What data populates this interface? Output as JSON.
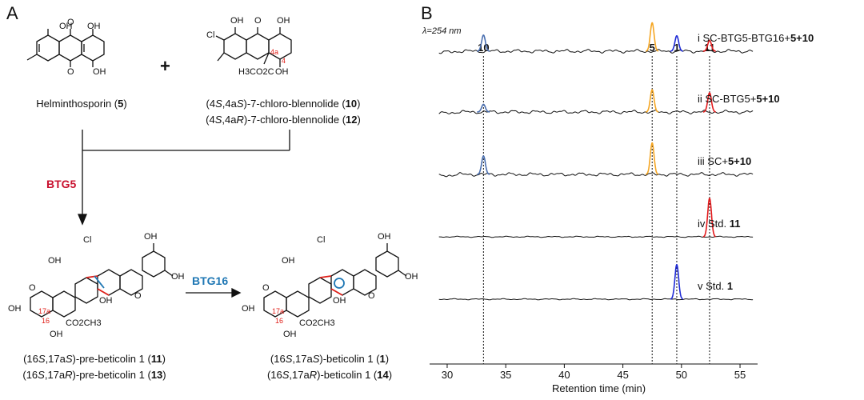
{
  "panel_a": {
    "letter": "A",
    "plus": "+",
    "helminthosporin": {
      "pre": "Helminthosporin (",
      "num": "5",
      "post": ")"
    },
    "chloro_10": {
      "p1": "(4",
      "i1": "S",
      "p2": ",4a",
      "i2": "S",
      "p3": ")-7-chloro-blennolide (",
      "num": "10",
      "p4": ")"
    },
    "chloro_12": {
      "p1": "(4",
      "i1": "S",
      "p2": ",4a",
      "i2": "R",
      "p3": ")-7-chloro-blennolide (",
      "num": "12",
      "p4": ")"
    },
    "enzyme1": "BTG5",
    "enzyme2": "BTG16",
    "prebet_11": {
      "p1": "(16",
      "i1": "S",
      "p2": ",17a",
      "i2": "S",
      "p3": ")-pre-beticolin 1 (",
      "num": "11",
      "p4": ")"
    },
    "prebet_13": {
      "p1": "(16",
      "i1": "S",
      "p2": ",17a",
      "i2": "R",
      "p3": ")-pre-beticolin 1 (",
      "num": "13",
      "p4": ")"
    },
    "bet_1": {
      "p1": "(16",
      "i1": "S",
      "p2": ",17a",
      "i2": "S",
      "p3": ")-beticolin 1 (",
      "num": "1",
      "p4": ")"
    },
    "bet_14": {
      "p1": "(16",
      "i1": "S",
      "p2": ",17a",
      "i2": "R",
      "p3": ")-beticolin 1 (",
      "num": "14",
      "p4": ")"
    },
    "struct_labels": {
      "oh": "OH",
      "o": "O",
      "cl": "Cl",
      "h3co2c": "H3CO2C",
      "co2ch3": "CO2CH3",
      "c4a": "4a",
      "c4": "4",
      "c17a": "17a",
      "c16": "16"
    },
    "colors": {
      "btg5": "#c8102e",
      "btg16": "#1f77b4",
      "stereo": "#e0201a"
    }
  },
  "panel_b": {
    "letter": "B",
    "wavelength": "λ=254 nm"
  },
  "chart_data": {
    "type": "line",
    "xlabel": "Retention time (min)",
    "ylabel": "",
    "xlim": [
      28.5,
      56.5
    ],
    "xticks": [
      30,
      35,
      40,
      45,
      50,
      55
    ],
    "grid": false,
    "peak_markers": [
      {
        "label": "10",
        "x": 33.1
      },
      {
        "label": "5",
        "x": 47.5
      },
      {
        "label": "1",
        "x": 49.6
      },
      {
        "label": "11",
        "x": 52.4
      }
    ],
    "series": [
      {
        "name": "i SC-BTG5-BTG16+5+10",
        "prefix": "i SC-BTG5-BTG16+",
        "suffix": "5+10",
        "peaks": [
          {
            "x": 33.1,
            "h": 0.42,
            "color": "#4a6fb0"
          },
          {
            "x": 47.5,
            "h": 0.74,
            "color": "#f5a623"
          },
          {
            "x": 49.6,
            "h": 0.4,
            "color": "#1f2bd6"
          },
          {
            "x": 52.4,
            "h": 0.28,
            "color": "#e31a1c"
          }
        ]
      },
      {
        "name": "ii SC-BTG5+5+10",
        "prefix": "ii SC-BTG5+",
        "suffix": "5+10",
        "peaks": [
          {
            "x": 33.1,
            "h": 0.2,
            "color": "#4a6fb0"
          },
          {
            "x": 47.5,
            "h": 0.58,
            "color": "#f5a623"
          },
          {
            "x": 52.4,
            "h": 0.5,
            "color": "#e31a1c"
          }
        ]
      },
      {
        "name": "iii SC+5+10",
        "prefix": "iii SC+",
        "suffix": "5+10",
        "peaks": [
          {
            "x": 33.1,
            "h": 0.48,
            "color": "#4a6fb0"
          },
          {
            "x": 47.5,
            "h": 0.82,
            "color": "#f5a623"
          }
        ]
      },
      {
        "name": "iv Std. 11",
        "prefix": "iv Std. ",
        "suffix": "11",
        "peaks": [
          {
            "x": 52.4,
            "h": 1.0,
            "color": "#e31a1c"
          }
        ]
      },
      {
        "name": "v Std. 1",
        "prefix": "v Std. ",
        "suffix": "1",
        "peaks": [
          {
            "x": 49.6,
            "h": 0.9,
            "color": "#1f2bd6"
          }
        ]
      }
    ]
  }
}
